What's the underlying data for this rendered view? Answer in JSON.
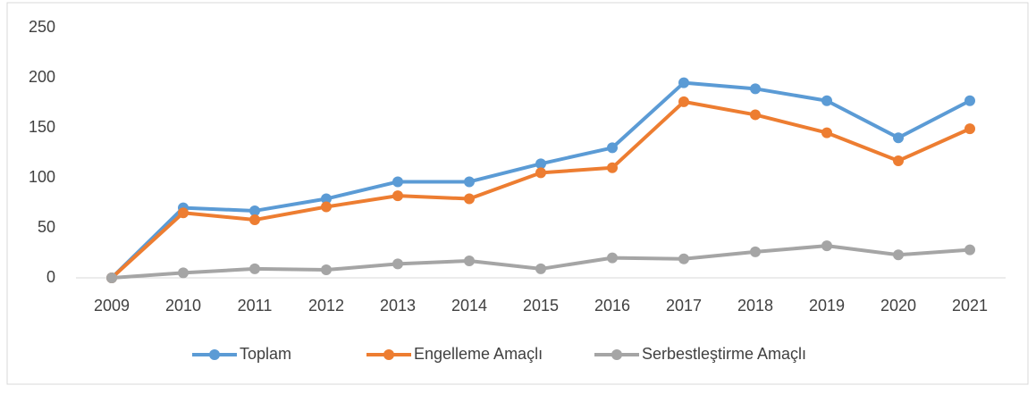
{
  "chart_data": {
    "type": "line",
    "categories": [
      "2009",
      "2010",
      "2011",
      "2012",
      "2013",
      "2014",
      "2015",
      "2016",
      "2017",
      "2018",
      "2019",
      "2020",
      "2021"
    ],
    "series": [
      {
        "name": "Toplam",
        "color": "#5b9bd5",
        "values": [
          0,
          70,
          67,
          79,
          96,
          96,
          114,
          130,
          195,
          189,
          177,
          140,
          177
        ]
      },
      {
        "name": "Engelleme Amaçlı",
        "color": "#ed7d31",
        "values": [
          0,
          65,
          58,
          71,
          82,
          79,
          105,
          110,
          176,
          163,
          145,
          117,
          149
        ]
      },
      {
        "name": "Serbestleştirme Amaçlı",
        "color": "#a5a5a5",
        "values": [
          0,
          5,
          9,
          8,
          14,
          17,
          9,
          20,
          19,
          26,
          32,
          23,
          28
        ]
      }
    ],
    "ylim": [
      0,
      250
    ],
    "yticks": [
      0,
      50,
      100,
      150,
      200,
      250
    ],
    "grid": false,
    "legend": "bottom"
  }
}
